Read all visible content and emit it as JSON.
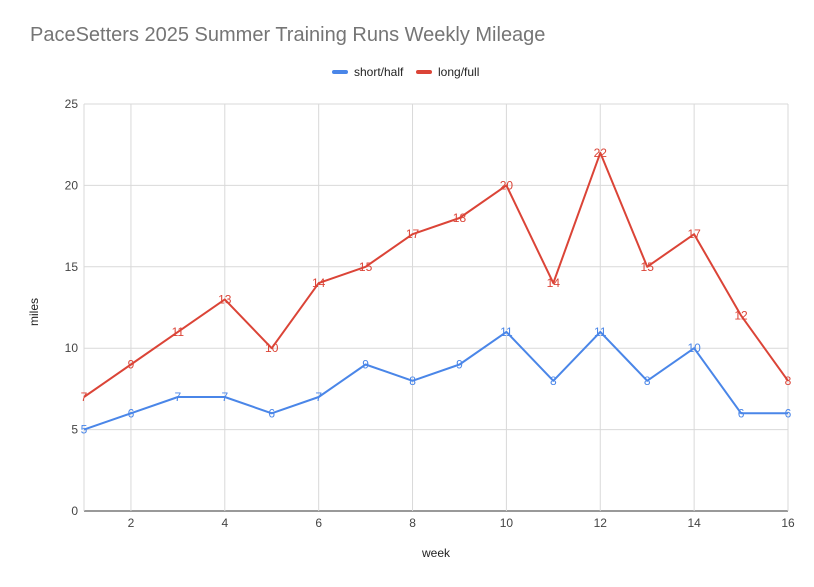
{
  "chart_data": {
    "type": "line",
    "title": "PaceSetters 2025 Summer Training Runs Weekly Mileage",
    "xlabel": "week",
    "ylabel": "miles",
    "xlim": [
      1,
      16
    ],
    "ylim": [
      0,
      25
    ],
    "xticks": [
      2,
      4,
      6,
      8,
      10,
      12,
      14,
      16
    ],
    "yticks": [
      0,
      5,
      10,
      15,
      20,
      25
    ],
    "grid": true,
    "legend_position": "top",
    "x": [
      1,
      2,
      3,
      4,
      5,
      6,
      7,
      8,
      9,
      10,
      11,
      12,
      13,
      14,
      15,
      16
    ],
    "series": [
      {
        "name": "short/half",
        "color": "#4a86e8",
        "values": [
          5,
          6,
          7,
          7,
          6,
          7,
          9,
          8,
          9,
          11,
          8,
          11,
          8,
          10,
          6,
          6
        ]
      },
      {
        "name": "long/full",
        "color": "#db4437",
        "values": [
          7,
          9,
          11,
          13,
          10,
          14,
          15,
          17,
          18,
          20,
          14,
          22,
          15,
          17,
          12,
          8
        ]
      }
    ]
  }
}
